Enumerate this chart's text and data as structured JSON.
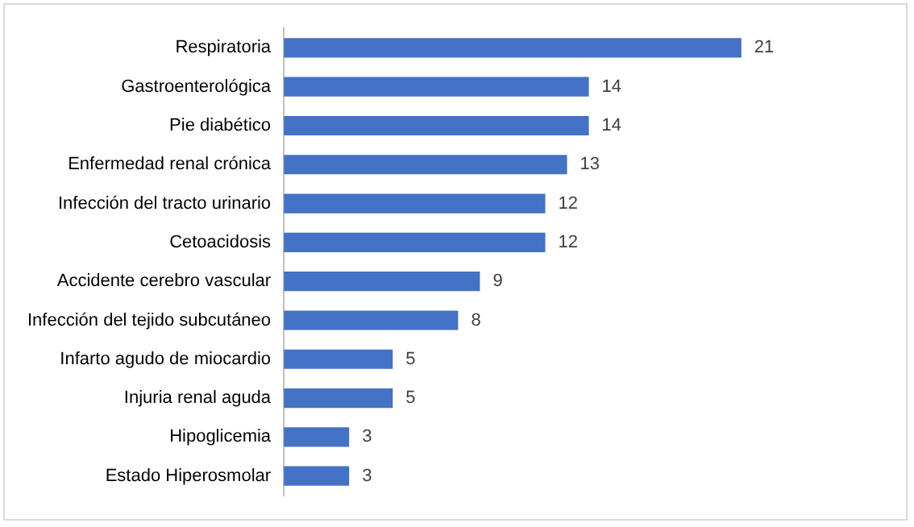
{
  "chart_data": {
    "type": "bar",
    "orientation": "horizontal",
    "categories": [
      "Respiratoria",
      "Gastroenterológica",
      "Pie diabético",
      "Enfermedad renal crónica",
      "Infección del tracto urinario",
      "Cetoacidosis",
      "Accidente cerebro vascular",
      "Infección del tejido subcutáneo",
      "Infarto agudo de miocardio",
      "Injuria renal aguda",
      "Hipoglicemia",
      "Estado Hiperosmolar"
    ],
    "values": [
      21,
      14,
      14,
      13,
      12,
      12,
      9,
      8,
      5,
      5,
      3,
      3
    ],
    "color": "#4472c4",
    "data_labels": true
  }
}
